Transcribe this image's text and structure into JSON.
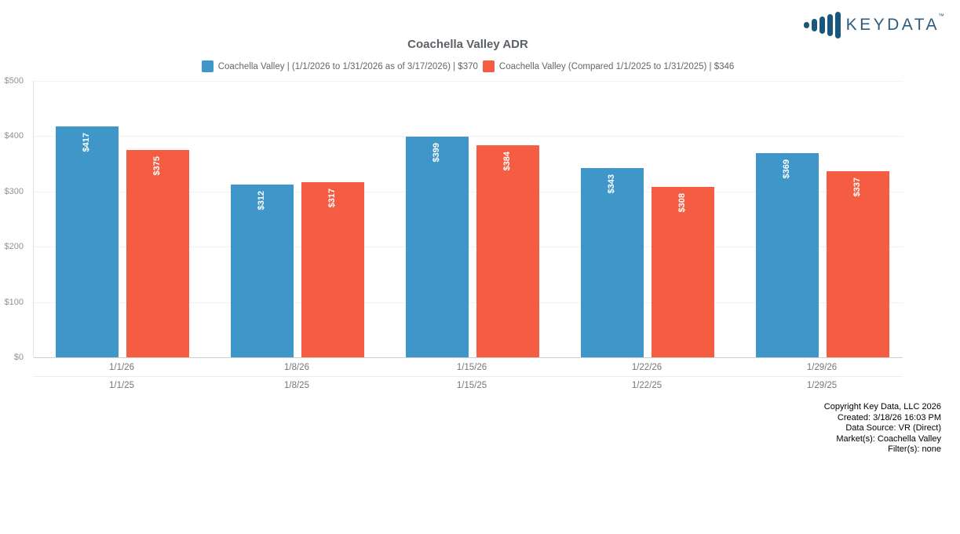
{
  "logo": {
    "text": "KEYDATA",
    "tm": "™",
    "color": "#2d5c7d"
  },
  "chart_data": {
    "type": "bar",
    "title": "Coachella Valley ADR",
    "categories_row1": [
      "1/1/26",
      "1/8/26",
      "1/15/26",
      "1/22/26",
      "1/29/26"
    ],
    "categories_row2": [
      "1/1/25",
      "1/8/25",
      "1/15/25",
      "1/22/25",
      "1/29/25"
    ],
    "series": [
      {
        "name": "Coachella Valley | (1/1/2026 to 1/31/2026 as of 3/17/2026) | $370",
        "color": "#3f97c9",
        "values": [
          417,
          312,
          399,
          343,
          369
        ],
        "labels": [
          "$417",
          "$312",
          "$399",
          "$343",
          "$369"
        ]
      },
      {
        "name": "Coachella Valley (Compared 1/1/2025 to 1/31/2025) | $346",
        "color": "#f45d42",
        "values": [
          375,
          317,
          384,
          308,
          337
        ],
        "labels": [
          "$375",
          "$317",
          "$384",
          "$308",
          "$337"
        ]
      }
    ],
    "xlabel": "",
    "ylabel": "",
    "ylim": [
      0,
      500
    ],
    "yticks": [
      "$500",
      "$400",
      "$300",
      "$200",
      "$100",
      "$0"
    ],
    "grid": true,
    "legend_position": "top"
  },
  "footer": {
    "lines": [
      "Copyright Key Data, LLC 2026",
      "Created: 3/18/26 16:03 PM",
      "Data Source: VR (Direct)",
      "Market(s):  Coachella Valley",
      "Filter(s): none"
    ]
  }
}
